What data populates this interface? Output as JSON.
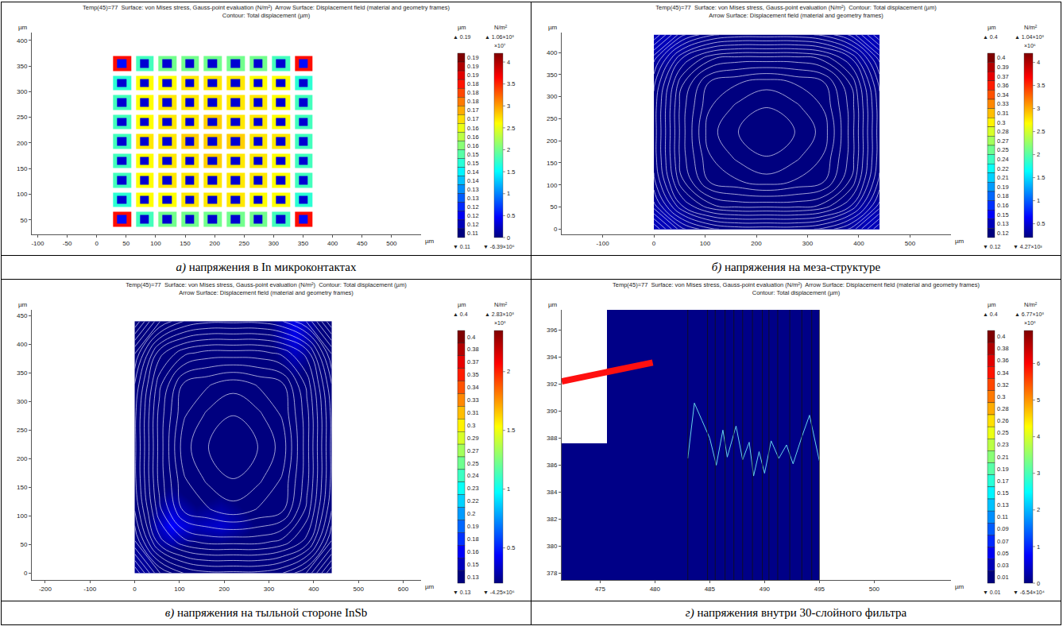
{
  "chart_data": [
    {
      "type": "heatmap",
      "title": [
        "Temp(45)=77  Surface: von Mises stress, Gauss-point evaluation (N/m²)  Arrow Surface: Displacement field (material and geometry frames)",
        "Contour: Total displacement (µm)"
      ],
      "caption": {
        "letter": "а)",
        "text": "напряжения в In микроконтактах"
      },
      "xlabel": "µm",
      "ylabel": "µm",
      "xlim": [
        -110,
        550
      ],
      "xticks": [
        -100,
        -50,
        0,
        50,
        100,
        150,
        200,
        250,
        300,
        350,
        400,
        450,
        500
      ],
      "ylim": [
        22,
        415
      ],
      "yticks": [
        50,
        100,
        150,
        200,
        250,
        300,
        350,
        400
      ],
      "cells": {
        "x": [
          43,
          81.5,
          120,
          158.5,
          197,
          235.5,
          274,
          312.5,
          351
        ],
        "y": [
          51,
          89,
          127,
          165,
          203,
          241,
          279,
          317,
          355
        ],
        "values": [
          [
            3.6,
            1.8,
            2.0,
            2.0,
            2.0,
            2.0,
            2.0,
            1.8,
            3.6
          ],
          [
            1.7,
            2.6,
            2.6,
            2.7,
            2.7,
            2.7,
            2.6,
            2.6,
            1.7
          ],
          [
            1.8,
            2.6,
            2.7,
            2.7,
            2.7,
            2.7,
            2.7,
            2.6,
            1.8
          ],
          [
            1.8,
            2.6,
            2.7,
            2.7,
            2.8,
            2.7,
            2.7,
            2.6,
            1.8
          ],
          [
            1.8,
            2.7,
            2.7,
            2.8,
            2.8,
            2.8,
            2.7,
            2.7,
            1.8
          ],
          [
            1.8,
            2.6,
            2.7,
            2.7,
            2.8,
            2.7,
            2.7,
            2.6,
            1.8
          ],
          [
            1.8,
            2.6,
            2.7,
            2.7,
            2.7,
            2.7,
            2.7,
            2.6,
            1.8
          ],
          [
            1.7,
            2.6,
            2.6,
            2.7,
            2.7,
            2.7,
            2.6,
            2.6,
            1.7
          ],
          [
            3.6,
            1.8,
            2.0,
            2.0,
            2.0,
            2.0,
            2.0,
            1.8,
            3.6
          ]
        ]
      },
      "inner_cells": {
        "values": [
          [
            0.5,
            0.3,
            0.3,
            0.3,
            0.3,
            0.3,
            0.3,
            0.3,
            0.5
          ],
          [
            0.3,
            0.3,
            0.3,
            0.3,
            0.3,
            0.3,
            0.3,
            0.3,
            0.3
          ],
          [
            0.3,
            0.3,
            0.3,
            0.3,
            0.3,
            0.3,
            0.3,
            0.3,
            0.3
          ],
          [
            0.3,
            0.3,
            0.3,
            0.3,
            0.3,
            0.3,
            0.3,
            0.3,
            0.3
          ],
          [
            0.3,
            0.3,
            0.3,
            0.3,
            0.3,
            0.3,
            0.3,
            0.3,
            0.3
          ],
          [
            0.3,
            0.3,
            0.3,
            0.3,
            0.3,
            0.3,
            0.3,
            0.3,
            0.3
          ],
          [
            0.3,
            0.3,
            0.3,
            0.3,
            0.3,
            0.3,
            0.3,
            0.3,
            0.3
          ],
          [
            0.3,
            0.3,
            0.3,
            0.3,
            0.3,
            0.3,
            0.3,
            0.3,
            0.3
          ],
          [
            0.5,
            0.3,
            0.3,
            0.3,
            0.3,
            0.3,
            0.3,
            0.3,
            0.5
          ]
        ]
      },
      "contour_legend": {
        "unit": "µm",
        "max": "▲ 0.19",
        "min": "▼ 0.11",
        "levels": [
          0.19,
          0.19,
          0.19,
          0.18,
          0.18,
          0.18,
          0.17,
          0.17,
          0.16,
          0.16,
          0.16,
          0.15,
          0.15,
          0.14,
          0.14,
          0.13,
          0.13,
          0.12,
          0.12,
          0.12,
          0.11
        ]
      },
      "colorbar": {
        "unit": "N/m²",
        "multiplier": "×10⁷",
        "max": "▲ 1.06×10⁸",
        "min": "▼ -6.39×10⁶",
        "range": [
          0,
          4.2
        ],
        "ticks": [
          0,
          0.5,
          1,
          1.5,
          2,
          2.5,
          3,
          3.5,
          4
        ]
      }
    },
    {
      "type": "heatmap",
      "title": [
        "Temp(45)=77  Surface: von Mises stress, Gauss-point evaluation (N/m²)  Contour: Total displacement (µm)",
        "Arrow Surface: Displacement field (material and geometry frames)"
      ],
      "caption": {
        "letter": "б)",
        "text": "напряжения на меза-структуре"
      },
      "xlabel": "µm",
      "ylabel": "µm",
      "xlim": [
        -180,
        580
      ],
      "xticks": [
        -100,
        0,
        100,
        200,
        300,
        400,
        500
      ],
      "ylim": [
        -12,
        445
      ],
      "yticks": [
        0,
        50,
        100,
        150,
        200,
        250,
        300,
        350,
        400
      ],
      "cells": {
        "x": [
          0,
          55,
          110,
          165,
          220,
          275,
          330,
          385,
          440
        ],
        "y": [
          0,
          55,
          110,
          165,
          220,
          275,
          330,
          385,
          440
        ],
        "values": [
          [
            0.4,
            0.25,
            0.22,
            0.22,
            0.22,
            0.22,
            0.25,
            0.4
          ],
          [
            0.25,
            0.18,
            0.16,
            0.16,
            0.16,
            0.16,
            0.18,
            0.25
          ],
          [
            0.22,
            0.16,
            0.15,
            0.15,
            0.15,
            0.15,
            0.16,
            0.22
          ],
          [
            0.22,
            0.16,
            0.15,
            0.14,
            0.14,
            0.15,
            0.16,
            0.22
          ],
          [
            0.22,
            0.16,
            0.15,
            0.14,
            0.14,
            0.15,
            0.16,
            0.22
          ],
          [
            0.22,
            0.16,
            0.15,
            0.15,
            0.15,
            0.15,
            0.16,
            0.22
          ],
          [
            0.25,
            0.18,
            0.16,
            0.16,
            0.16,
            0.16,
            0.18,
            0.25
          ],
          [
            0.4,
            0.25,
            0.22,
            0.22,
            0.22,
            0.22,
            0.25,
            0.4
          ]
        ]
      },
      "displacement": {
        "x": [
          0,
          55,
          110,
          165,
          220,
          275,
          330,
          385,
          440
        ],
        "y": [
          0,
          55,
          110,
          165,
          220,
          275,
          330,
          385,
          440
        ],
        "values": [
          [
            0.4,
            0.33,
            0.3,
            0.29,
            0.29,
            0.29,
            0.3,
            0.33,
            0.4
          ],
          [
            0.33,
            0.25,
            0.21,
            0.2,
            0.2,
            0.2,
            0.21,
            0.25,
            0.33
          ],
          [
            0.3,
            0.21,
            0.16,
            0.15,
            0.14,
            0.15,
            0.16,
            0.21,
            0.3
          ],
          [
            0.29,
            0.2,
            0.15,
            0.13,
            0.12,
            0.13,
            0.15,
            0.2,
            0.29
          ],
          [
            0.29,
            0.2,
            0.14,
            0.12,
            0.12,
            0.12,
            0.14,
            0.2,
            0.29
          ],
          [
            0.29,
            0.2,
            0.15,
            0.13,
            0.12,
            0.13,
            0.15,
            0.2,
            0.29
          ],
          [
            0.3,
            0.21,
            0.16,
            0.15,
            0.14,
            0.15,
            0.16,
            0.21,
            0.3
          ],
          [
            0.33,
            0.25,
            0.21,
            0.2,
            0.2,
            0.2,
            0.21,
            0.25,
            0.33
          ],
          [
            0.4,
            0.33,
            0.3,
            0.29,
            0.29,
            0.29,
            0.3,
            0.33,
            0.4
          ]
        ]
      },
      "contour_legend": {
        "unit": "µm",
        "max": "▲ 0.4",
        "min": "▼ 0.12",
        "levels": [
          0.4,
          0.39,
          0.37,
          0.36,
          0.34,
          0.33,
          0.31,
          0.3,
          0.28,
          0.27,
          0.25,
          0.24,
          0.22,
          0.21,
          0.19,
          0.18,
          0.16,
          0.15,
          0.13,
          0.12
        ]
      },
      "colorbar": {
        "unit": "N/m²",
        "multiplier": "×10⁶",
        "max": "▲ 1.04×10⁸",
        "min": "▼ 4.27×10³",
        "range": [
          0.2,
          4.2
        ],
        "ticks": [
          0.5,
          1,
          1.5,
          2,
          2.5,
          3,
          3.5,
          4
        ]
      }
    },
    {
      "type": "heatmap",
      "title": [
        "Temp(45)=77  Surface: von Mises stress, Gauss-point evaluation (N/m²)  Contour: Total displacement (µm)",
        "Arrow Surface: Displacement field (material and geometry frames)"
      ],
      "caption": {
        "letter": "в)",
        "text": "напряжения на тыльной стороне InSb"
      },
      "xlabel": "µm",
      "ylabel": "µm",
      "xlim": [
        -230,
        640
      ],
      "xticks": [
        -200,
        -100,
        0,
        100,
        200,
        300,
        400,
        500,
        600
      ],
      "ylim": [
        -12,
        460
      ],
      "yticks": [
        0,
        50,
        100,
        150,
        200,
        250,
        300,
        350,
        400,
        450
      ],
      "cells": {
        "x": [
          0,
          55,
          110,
          165,
          220,
          275,
          330,
          385,
          440
        ],
        "y": [
          0,
          55,
          110,
          165,
          220,
          275,
          330,
          385,
          440
        ],
        "values": [
          [
            0.25,
            0.15,
            0.12,
            0.1,
            0.1,
            0.1,
            0.12,
            0.18
          ],
          [
            0.2,
            0.45,
            0.3,
            0.35,
            0.25,
            0.12,
            0.1,
            0.12
          ],
          [
            0.15,
            0.25,
            0.15,
            0.2,
            0.15,
            0.1,
            0.1,
            0.1
          ],
          [
            0.1,
            0.1,
            0.12,
            0.15,
            0.12,
            0.1,
            0.1,
            0.1
          ],
          [
            0.1,
            0.1,
            0.15,
            0.18,
            0.15,
            0.12,
            0.1,
            0.1
          ],
          [
            0.1,
            0.12,
            0.15,
            0.15,
            0.12,
            0.1,
            0.12,
            0.1
          ],
          [
            0.12,
            0.1,
            0.1,
            0.12,
            0.1,
            0.15,
            0.25,
            0.15
          ],
          [
            0.18,
            0.12,
            0.1,
            0.1,
            0.12,
            0.2,
            0.4,
            0.2
          ]
        ]
      },
      "displacement": {
        "x": [
          0,
          55,
          110,
          165,
          220,
          275,
          330,
          385,
          440
        ],
        "y": [
          0,
          55,
          110,
          165,
          220,
          275,
          330,
          385,
          440
        ],
        "values": [
          [
            0.4,
            0.33,
            0.3,
            0.29,
            0.29,
            0.29,
            0.3,
            0.33,
            0.4
          ],
          [
            0.33,
            0.25,
            0.22,
            0.21,
            0.21,
            0.21,
            0.22,
            0.25,
            0.33
          ],
          [
            0.3,
            0.22,
            0.17,
            0.16,
            0.15,
            0.16,
            0.17,
            0.22,
            0.3
          ],
          [
            0.29,
            0.21,
            0.16,
            0.14,
            0.13,
            0.14,
            0.16,
            0.21,
            0.29
          ],
          [
            0.29,
            0.21,
            0.15,
            0.13,
            0.13,
            0.13,
            0.15,
            0.21,
            0.29
          ],
          [
            0.29,
            0.21,
            0.16,
            0.14,
            0.13,
            0.14,
            0.16,
            0.21,
            0.29
          ],
          [
            0.3,
            0.22,
            0.17,
            0.16,
            0.15,
            0.16,
            0.17,
            0.22,
            0.3
          ],
          [
            0.33,
            0.25,
            0.22,
            0.21,
            0.21,
            0.21,
            0.22,
            0.25,
            0.33
          ],
          [
            0.4,
            0.33,
            0.3,
            0.29,
            0.29,
            0.29,
            0.3,
            0.33,
            0.4
          ]
        ]
      },
      "contour_legend": {
        "unit": "µm",
        "max": "▲ 0.4",
        "min": "▼ 0.13",
        "levels": [
          0.4,
          0.38,
          0.37,
          0.35,
          0.34,
          0.33,
          0.31,
          0.3,
          0.29,
          0.27,
          0.25,
          0.24,
          0.23,
          0.22,
          0.2,
          0.19,
          0.18,
          0.16,
          0.15,
          0.13
        ]
      },
      "colorbar": {
        "unit": "N/m²",
        "multiplier": "×10⁸",
        "max": "▲ 2.83×10⁸",
        "min": "▼ -4.25×10⁶",
        "range": [
          0.2,
          2.35
        ],
        "ticks": [
          0.5,
          1,
          1.5,
          2
        ]
      }
    },
    {
      "type": "heatmap",
      "title": [
        "Temp(45)=77  Surface: von Mises stress, Gauss-point evaluation (N/m²)  Arrow Surface: Displacement field (material and geometry frames)",
        "Contour: Total displacement (µm)"
      ],
      "caption": {
        "letter": "г)",
        "text": "напряжения внутри 30-слойного фильтра"
      },
      "xlabel": "µm",
      "ylabel": "µm",
      "xlim": [
        471.5,
        507
      ],
      "xticks": [
        475,
        480,
        485,
        490,
        495,
        500
      ],
      "ylim": [
        377.5,
        397.5
      ],
      "yticks": [
        378,
        380,
        382,
        384,
        386,
        388,
        390,
        392,
        394,
        396
      ],
      "cells": {
        "x": [
          471.5,
          475.6,
          483,
          495
        ],
        "y": [
          377.5,
          387.6,
          397.5
        ],
        "values": [
          [
            0.05,
            0.05,
            0.05
          ],
          [
            null,
            0.05,
            0.05
          ]
        ]
      },
      "layer_boundaries": [
        483,
        484.8,
        485.5,
        486.4,
        487.2,
        488,
        488.9,
        489.8,
        490.4,
        491.2,
        492.3,
        493.4,
        494.3,
        495
      ],
      "contour": {
        "x": [
          483,
          483.6,
          484.3,
          485,
          485.6,
          486.2,
          486.6,
          487.4,
          488,
          488.6,
          489,
          489.5,
          490,
          490.6,
          491.3,
          492,
          492.6,
          493.4,
          494.1,
          495
        ],
        "y": [
          386.5,
          390.6,
          389.3,
          388,
          386,
          388.6,
          386.6,
          388.9,
          386.4,
          387.7,
          385.2,
          387,
          385.4,
          387.8,
          386.5,
          387.5,
          386.1,
          388.1,
          389.7,
          386.3
        ]
      },
      "arrow": {
        "x": [
          471.5,
          479.8
        ],
        "y": [
          392.2,
          393.6
        ]
      },
      "contour_legend": {
        "unit": "µm",
        "max": "▲ 0.4",
        "min": "▼ 0.01",
        "levels": [
          0.4,
          0.38,
          0.36,
          0.34,
          0.32,
          0.3,
          0.28,
          0.26,
          0.25,
          0.23,
          0.21,
          0.19,
          0.17,
          0.15,
          0.13,
          0.11,
          0.09,
          0.07,
          0.05,
          0.03,
          0.01
        ]
      },
      "colorbar": {
        "unit": "N/m²",
        "multiplier": "×10⁸",
        "max": "▲ 6.77×10⁸",
        "min": "▼ -6.54×10⁴",
        "range": [
          0,
          6.9
        ],
        "ticks": [
          0,
          1,
          2,
          3,
          4,
          5,
          6
        ]
      }
    }
  ]
}
